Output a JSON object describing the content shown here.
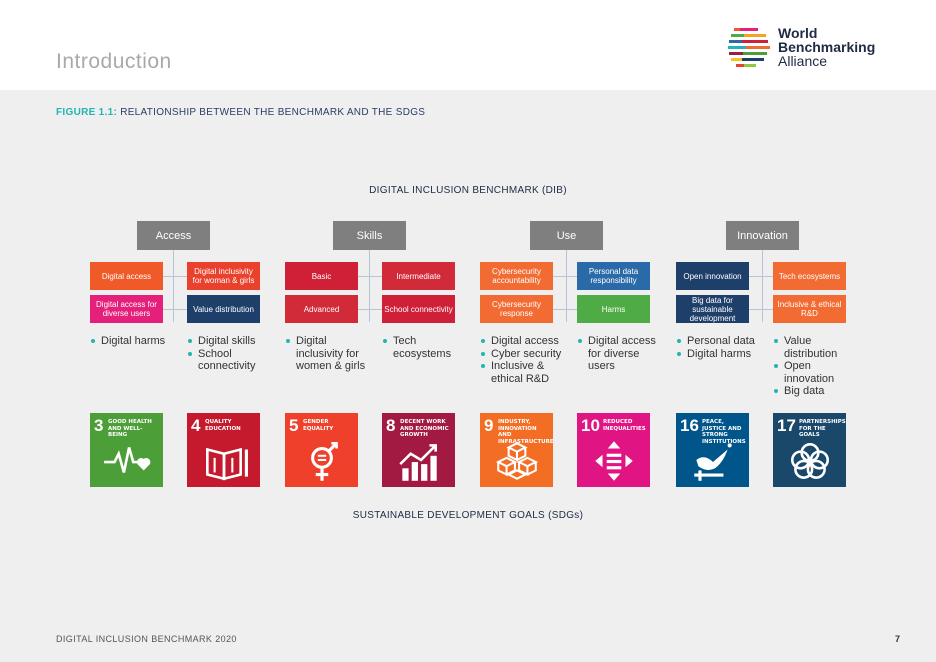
{
  "header": {
    "title": "Introduction"
  },
  "logo": {
    "line1": "World",
    "line2": "Benchmarking",
    "line3": "Alliance"
  },
  "figure": {
    "number": "FIGURE 1.1:",
    "caption": "RELATIONSHIP BETWEEN THE BENCHMARK AND THE SDGS"
  },
  "diagram": {
    "top_title": "DIGITAL INCLUSION BENCHMARK (DIB)",
    "bottom_title": "SUSTAINABLE DEVELOPMENT GOALS (SDGs)",
    "categories": [
      {
        "label": "Access",
        "subs": [
          "Digital access",
          "Digital inclusivity for woman & girls",
          "Digital access for diverse users",
          "Value distribution"
        ]
      },
      {
        "label": "Skills",
        "subs": [
          "Basic",
          "Intermediate",
          "Advanced",
          "School connectivity"
        ]
      },
      {
        "label": "Use",
        "subs": [
          "Cybersecurity accountability",
          "Personal data responsibility",
          "Cybersecurity response",
          "Harms"
        ]
      },
      {
        "label": "Innovation",
        "subs": [
          "Open innovation",
          "Tech ecosystems",
          "Big data for sustainable development",
          "Inclusive & ethical R&D"
        ]
      }
    ],
    "sub_colors": [
      [
        "#f05a28",
        "#e9412b",
        "#e5207a",
        "#1f3f6b"
      ],
      [
        "#cf2038",
        "#d12a38",
        "#d12a38",
        "#cf2038"
      ],
      [
        "#f26b33",
        "#2b6aa8",
        "#f26b33",
        "#4fab46"
      ],
      [
        "#1f3f6b",
        "#f26b33",
        "#1f3f6b",
        "#f26b33"
      ]
    ],
    "bullet_columns": [
      [
        "Digital harms"
      ],
      [
        "Digital skills",
        "School connectivity"
      ],
      [
        "Digital inclusivity for women & girls"
      ],
      [
        "Tech ecosystems"
      ],
      [
        "Digital access",
        "Cyber security",
        "Inclusive & ethical R&D"
      ],
      [
        "Digital access for diverse users"
      ],
      [
        "Personal data",
        "Digital harms"
      ],
      [
        "Value distribution",
        "Open innovation",
        "Big data"
      ]
    ],
    "sdgs": [
      {
        "number": "3",
        "label": "GOOD HEALTH AND WELL-BEING",
        "color": "#4c9f38",
        "icon": "heartbeat-icon"
      },
      {
        "number": "4",
        "label": "QUALITY EDUCATION",
        "color": "#c5192d",
        "icon": "book-icon"
      },
      {
        "number": "5",
        "label": "GENDER EQUALITY",
        "color": "#ef402b",
        "icon": "gender-icon"
      },
      {
        "number": "8",
        "label": "DECENT WORK AND ECONOMIC GROWTH",
        "color": "#a21942",
        "icon": "growth-chart-icon"
      },
      {
        "number": "9",
        "label": "INDUSTRY, INNOVATION AND INFRASTRUCTURE",
        "color": "#f36d25",
        "icon": "cubes-icon"
      },
      {
        "number": "10",
        "label": "REDUCED INEQUALITIES",
        "color": "#e11484",
        "icon": "equality-arrows-icon"
      },
      {
        "number": "16",
        "label": "PEACE, JUSTICE AND STRONG INSTITUTIONS",
        "color": "#00558a",
        "icon": "dove-icon"
      },
      {
        "number": "17",
        "label": "PARTNERSHIPS FOR THE GOALS",
        "color": "#19486a",
        "icon": "rings-icon"
      }
    ]
  },
  "footer": {
    "text": "DIGITAL INCLUSION BENCHMARK 2020",
    "page": "7"
  }
}
